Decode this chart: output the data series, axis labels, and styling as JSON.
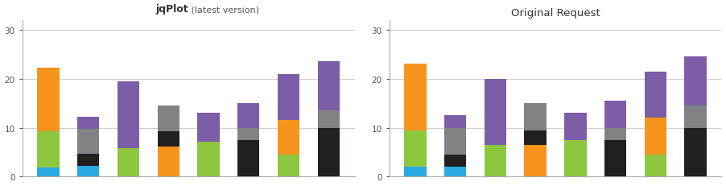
{
  "title_left_bold": "jqPlot",
  "title_left_normal": " (latest version)",
  "title_right": "Original Request",
  "ylim": [
    0,
    32
  ],
  "yticks": [
    0,
    10,
    20,
    30
  ],
  "segment_colors": [
    "#29abe2",
    "#8dc63f",
    "#f7941d",
    "#231f20",
    "#808285",
    "#7b5ea7"
  ],
  "left_bars": [
    [
      1.8,
      7.5,
      13.0,
      0,
      0,
      0
    ],
    [
      2.2,
      0,
      0,
      2.5,
      5.0,
      2.5
    ],
    [
      0,
      5.8,
      0,
      0,
      0,
      13.7
    ],
    [
      0,
      0,
      6.2,
      3.0,
      5.3,
      0
    ],
    [
      0,
      7.2,
      0,
      0,
      0,
      5.8
    ],
    [
      0,
      0,
      0,
      7.5,
      2.5,
      5.0
    ],
    [
      0,
      4.5,
      7.0,
      0,
      0,
      9.5
    ],
    [
      0,
      0,
      0,
      10.0,
      3.5,
      10.0
    ]
  ],
  "right_bars": [
    [
      2.0,
      7.5,
      13.5,
      0,
      0,
      0
    ],
    [
      2.0,
      0,
      0,
      2.5,
      5.5,
      2.5
    ],
    [
      0,
      6.5,
      0,
      0,
      0,
      13.5
    ],
    [
      0,
      0,
      6.5,
      3.0,
      5.5,
      0
    ],
    [
      0,
      7.5,
      0,
      0,
      0,
      5.5
    ],
    [
      0,
      0,
      0,
      7.5,
      2.5,
      5.5
    ],
    [
      0,
      4.5,
      7.5,
      0,
      0,
      9.5
    ],
    [
      0,
      0,
      0,
      10.0,
      4.5,
      10.0
    ]
  ],
  "bar_width": 0.55,
  "bg_color": "#ffffff",
  "grid_color": "#cccccc",
  "spine_color": "#aaaaaa",
  "tick_color": "#555555",
  "tick_fontsize": 7.5
}
